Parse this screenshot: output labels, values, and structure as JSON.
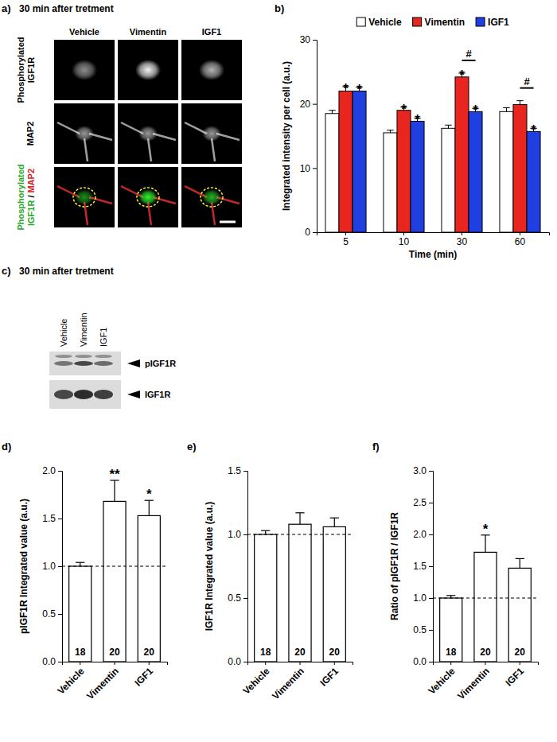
{
  "panels": {
    "a": {
      "panel_label": "a)",
      "title": "30 min after tretment",
      "columns": [
        "Vehicle",
        "Vimentin",
        "IGF1"
      ],
      "rows": [
        "Phosphorylated IGF1R",
        "MAP2"
      ],
      "merge_label": {
        "green": "Phosphorylated IGF1R",
        "separator": "/",
        "red": "MAP2"
      }
    },
    "c": {
      "panel_label": "c)",
      "title": "30 min after tretment",
      "lanes": [
        "Vehicle",
        "Vimentin",
        "IGF1"
      ],
      "bands": [
        "pIGF1R",
        "IGF1R"
      ]
    }
  },
  "chart_data": [
    {
      "panel_label": "b)",
      "type": "bar",
      "x_label": "Time (min)",
      "y_label": "Integrated intensity per cell (a.u.)",
      "categories": [
        5,
        10,
        30,
        60
      ],
      "ylim": [
        0,
        30
      ],
      "yticks": [
        0,
        10,
        20,
        30
      ],
      "legend": "top",
      "series": [
        {
          "name": "Vehicle",
          "color": "#ffffff",
          "values": [
            18.5,
            15.5,
            16.2,
            18.8
          ],
          "errors": [
            0.5,
            0.4,
            0.5,
            0.6
          ]
        },
        {
          "name": "Vimentin",
          "color": "#e8261f",
          "values": [
            22.0,
            19.0,
            24.2,
            19.9
          ],
          "errors": [
            0.7,
            0.5,
            0.6,
            0.6
          ],
          "annotations": [
            "*",
            "*",
            "*",
            null
          ]
        },
        {
          "name": "IGF1",
          "color": "#1f3fe0",
          "values": [
            22.0,
            17.3,
            18.8,
            15.7
          ],
          "errors": [
            0.6,
            0.5,
            0.5,
            0.5
          ],
          "annotations": [
            "*",
            "*",
            "*",
            "*"
          ]
        }
      ],
      "comparison_labels": [
        null,
        null,
        "#",
        "#"
      ]
    },
    {
      "panel_label": "d)",
      "type": "bar",
      "y_label": "pIGF1R Integrated value (a.u.)",
      "categories": [
        "Vehicle",
        "Vimentin",
        "IGF1"
      ],
      "values": [
        1.0,
        1.68,
        1.53
      ],
      "errors": [
        0.04,
        0.22,
        0.16
      ],
      "annotations": [
        null,
        "**",
        "*"
      ],
      "n_labels": [
        18,
        20,
        20
      ],
      "reference_line": 1,
      "color": "#ffffff",
      "ylim": [
        0,
        2
      ],
      "yticks": [
        {
          "value": 0,
          "label": "0.0"
        },
        {
          "value": 0.5,
          "label": "0.5"
        },
        {
          "value": 1,
          "label": "1.0"
        },
        {
          "value": 1.5,
          "label": "1.5"
        },
        {
          "value": 2,
          "label": "2.0"
        }
      ]
    },
    {
      "panel_label": "e)",
      "type": "bar",
      "y_label": "IGF1R Integrated value (a.u.)",
      "categories": [
        "Vehicle",
        "Vimentin",
        "IGF1"
      ],
      "values": [
        1.0,
        1.08,
        1.06
      ],
      "errors": [
        0.03,
        0.09,
        0.07
      ],
      "n_labels": [
        18,
        20,
        20
      ],
      "reference_line": 1,
      "color": "#ffffff",
      "ylim": [
        0,
        1.5
      ],
      "yticks": [
        {
          "value": 0,
          "label": "0.0"
        },
        {
          "value": 0.5,
          "label": "0.5"
        },
        {
          "value": 1,
          "label": "1.0"
        },
        {
          "value": 1.5,
          "label": "1.5"
        }
      ]
    },
    {
      "panel_label": "f)",
      "type": "bar",
      "y_label": "Ratio of pIGF1R / IGF1R",
      "categories": [
        "Vehicle",
        "Vimentin",
        "IGF1"
      ],
      "values": [
        1.0,
        1.72,
        1.47
      ],
      "errors": [
        0.04,
        0.27,
        0.15
      ],
      "annotations": [
        null,
        "*",
        null
      ],
      "n_labels": [
        18,
        20,
        20
      ],
      "reference_line": 1,
      "color": "#ffffff",
      "ylim": [
        0,
        3
      ],
      "yticks": [
        {
          "value": 0,
          "label": "0.0"
        },
        {
          "value": 0.5,
          "label": "0.5"
        },
        {
          "value": 1,
          "label": "1.0"
        },
        {
          "value": 1.5,
          "label": "1.5"
        },
        {
          "value": 2,
          "label": "2.0"
        },
        {
          "value": 2.5,
          "label": "2.5"
        },
        {
          "value": 3,
          "label": "3.0"
        }
      ]
    }
  ]
}
